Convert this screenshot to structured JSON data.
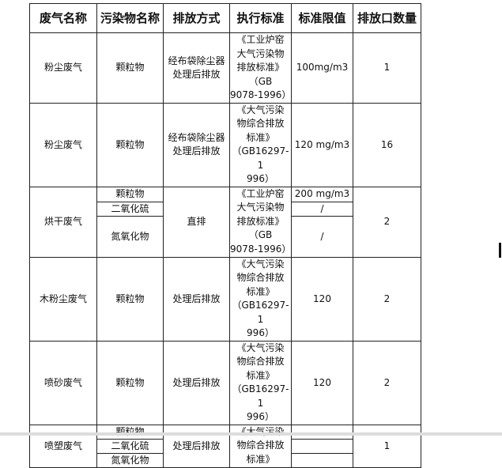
{
  "headers": [
    "废气名称",
    "污染物名称",
    "排放方式",
    "执行标准",
    "标准限值",
    "排放口数量"
  ],
  "rows": [
    {
      "gas": "粉尘废气",
      "pollutant": "颗粒物",
      "method": "经布袋除尘器\n处理后排放",
      "standard": "《工业炉窑\n大气污染物\n排放标准》\n（GB\n9078-1996）",
      "limit": "100mg/m3",
      "outlets": "1"
    },
    {
      "gas": "粉尘废气",
      "pollutant": "颗粒物",
      "method": "经布袋除尘器\n处理后排放",
      "standard": "《大气污染\n物综合排放\n标准》\n（GB16297-1\n996）",
      "limit": "120 mg/m3",
      "outlets": "16"
    },
    {
      "gas": "烘干废气",
      "pollutants": [
        "颗粒物",
        "二氧化硫",
        "氮氧化物"
      ],
      "method": "直排",
      "standard": "《工业炉窑\n大气污染物\n排放标准》\n（GB\n9078-1996）",
      "limits": [
        "200 mg/m3",
        "/",
        "/"
      ],
      "outlets": "2"
    },
    {
      "gas": "木粉尘废气",
      "pollutant": "颗粒物",
      "method": "处理后排放",
      "standard": "《大气污染\n物综合排放\n标准》\n（GB16297-1\n996）",
      "limit": "120",
      "outlets": "2"
    },
    {
      "gas": "喷砂废气",
      "pollutant": "颗粒物",
      "method": "处理后排放",
      "standard": "《大气污染\n物综合排放\n标准》\n（GB16297-1\n996）",
      "limit": "120",
      "outlets": "2"
    },
    {
      "gas": "喷塑废气",
      "pollutants": [
        "颗粒物",
        "二氧化硫",
        "氮氧化物"
      ],
      "method": "处理后排放",
      "standard": "《大气污染\n物综合排放\n标准》",
      "limits": [
        "",
        "",
        ""
      ],
      "outlets": "1"
    }
  ]
}
